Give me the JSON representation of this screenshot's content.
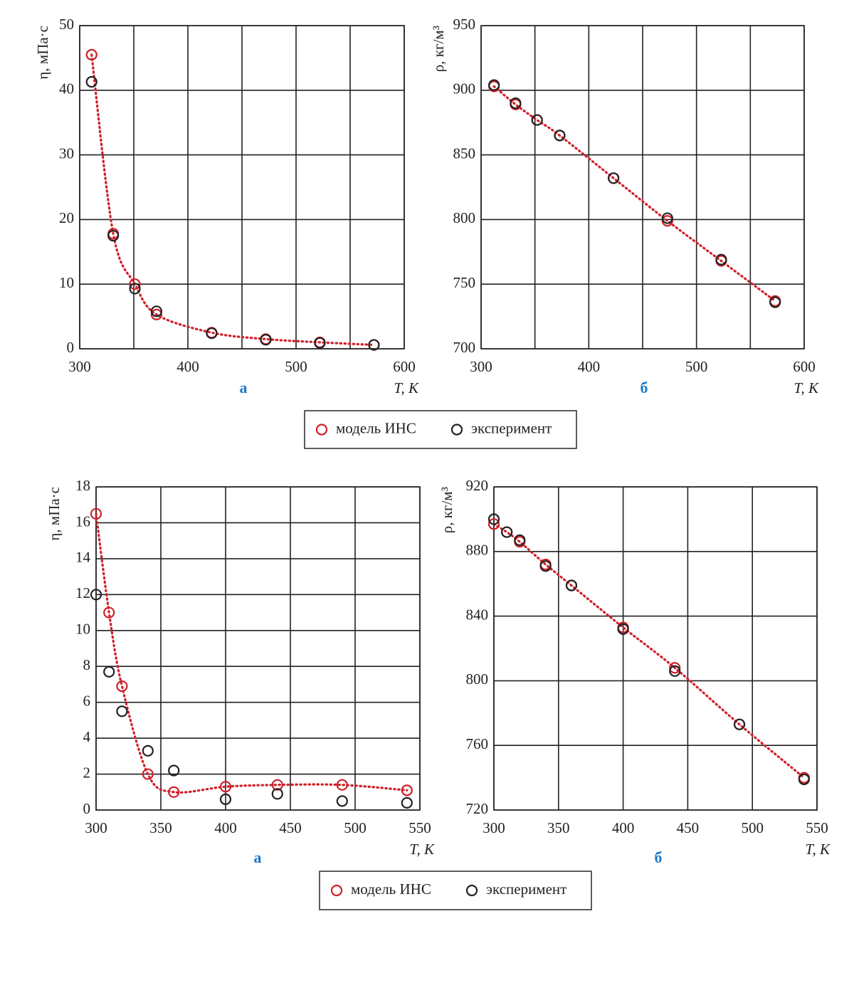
{
  "chart_data": [
    {
      "type": "scatter",
      "ylabel": "η, мПа·с",
      "xlabel": "T, К",
      "caption": "а",
      "x": [
        311,
        331,
        351,
        371,
        422,
        472,
        522,
        572
      ],
      "series": [
        {
          "name": "модель ИНС",
          "color": "#d0202a",
          "line": "dotted",
          "values": [
            45.5,
            17.8,
            10,
            5.3,
            2.5,
            1.5,
            1.0,
            0.6
          ]
        },
        {
          "name": "эксперимент",
          "color": "#222222",
          "values": [
            41.3,
            17.5,
            9.3,
            5.8,
            2.4,
            1.4,
            0.9,
            0.6
          ]
        }
      ],
      "xlim": [
        300,
        600
      ],
      "xticks": [
        300,
        400,
        500,
        600
      ],
      "xminorticks": [
        350,
        450,
        550
      ],
      "ylim": [
        0,
        50
      ],
      "yticks": [
        0,
        10,
        20,
        30,
        40,
        50
      ],
      "grid": true,
      "legend": "below"
    },
    {
      "type": "scatter",
      "ylabel": "ρ, кг/м³",
      "xlabel": "T, К",
      "caption": "б",
      "x": [
        312,
        332,
        352,
        373,
        423,
        473,
        523,
        573
      ],
      "series": [
        {
          "name": "модель ИНС",
          "color": "#d0202a",
          "line": "dotted",
          "values": [
            903,
            889,
            877,
            865,
            832,
            799,
            768,
            737
          ]
        },
        {
          "name": "эксперимент",
          "color": "#222222",
          "values": [
            904,
            890,
            877,
            865,
            832,
            801,
            769,
            736
          ]
        }
      ],
      "xlim": [
        300,
        600
      ],
      "xticks": [
        300,
        400,
        500,
        600
      ],
      "xminorticks": [
        350,
        450,
        550
      ],
      "ylim": [
        700,
        950
      ],
      "yticks": [
        700,
        750,
        800,
        850,
        900,
        950
      ],
      "grid": true
    },
    {
      "type": "scatter",
      "ylabel": "η, мПа·с",
      "xlabel": "T, К",
      "caption": "а",
      "x": [
        300,
        310,
        320,
        340,
        360,
        400,
        440,
        490,
        540
      ],
      "series": [
        {
          "name": "модель ИНС",
          "color": "#d0202a",
          "line": "dotted",
          "values": [
            16.5,
            11,
            6.9,
            2.0,
            1.0,
            1.3,
            1.4,
            1.4,
            1.1
          ]
        },
        {
          "name": "эксперимент",
          "color": "#222222",
          "values": [
            12,
            7.7,
            5.5,
            3.3,
            2.2,
            0.6,
            0.9,
            0.5,
            0.4
          ]
        }
      ],
      "xlim": [
        300,
        550
      ],
      "xticks": [
        300,
        350,
        400,
        450,
        500,
        550
      ],
      "ylim": [
        0,
        18
      ],
      "yticks": [
        0,
        2,
        4,
        6,
        8,
        10,
        12,
        14,
        16,
        18
      ],
      "grid": true,
      "legend": "below"
    },
    {
      "type": "scatter",
      "ylabel": "ρ, кг/м³",
      "xlabel": "T, К",
      "caption": "б",
      "x": [
        300,
        310,
        320,
        340,
        360,
        400,
        440,
        490,
        540
      ],
      "series": [
        {
          "name": "модель ИНС",
          "color": "#d0202a",
          "line": "dotted",
          "values": [
            897,
            892,
            886,
            872,
            859,
            833,
            808,
            773,
            740
          ]
        },
        {
          "name": "эксперимент",
          "color": "#222222",
          "values": [
            900,
            892,
            887,
            871,
            859,
            832,
            806,
            773,
            739
          ]
        }
      ],
      "xlim": [
        300,
        550
      ],
      "xticks": [
        300,
        350,
        400,
        450,
        500,
        550
      ],
      "ylim": [
        720,
        920
      ],
      "yticks": [
        720,
        760,
        800,
        840,
        880,
        920
      ],
      "grid": true
    }
  ]
}
